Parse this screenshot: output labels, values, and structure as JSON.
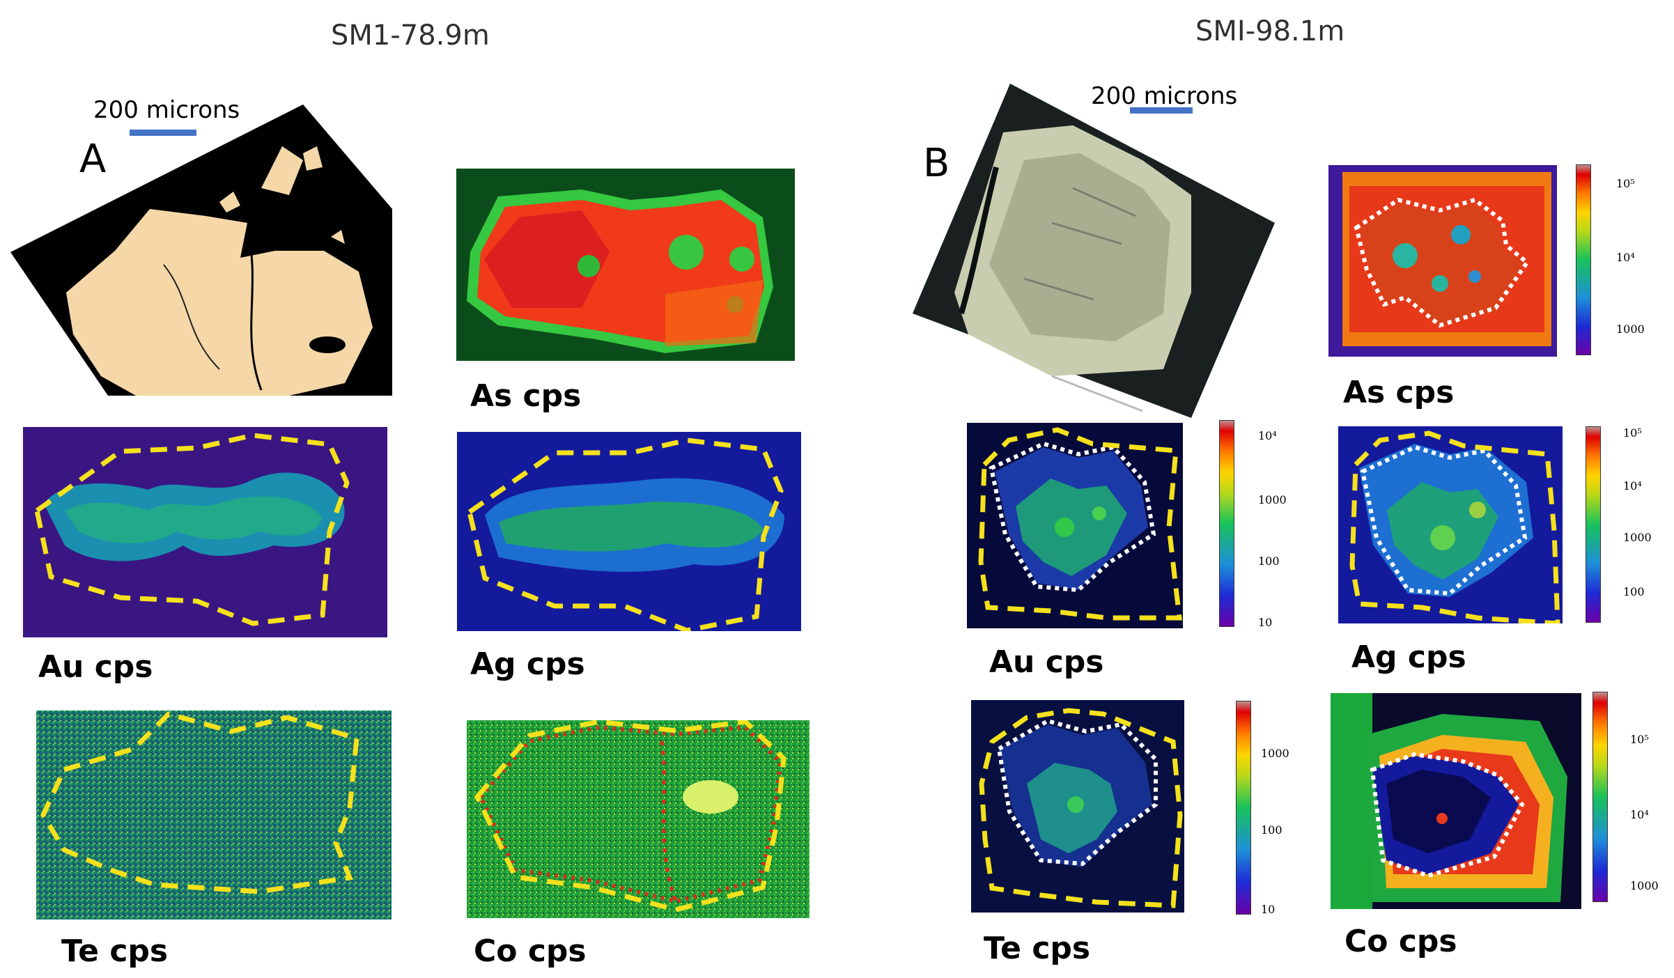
{
  "panel_a": {
    "title": "SM1-78.9m",
    "letter": "A",
    "scale_label": "200 microns",
    "labels": {
      "as": "As cps",
      "au": "Au cps",
      "ag": "Ag cps",
      "te": "Te cps",
      "co": "Co cps"
    }
  },
  "panel_b": {
    "title": "SMI-98.1m",
    "letter": "B",
    "scale_label": "200 microns",
    "labels": {
      "as": "As cps",
      "au": "Au cps",
      "ag": "Ag cps",
      "te": "Te cps",
      "co": "Co cps"
    },
    "colorbars": {
      "as": [
        "10⁵",
        "10⁴",
        "1000"
      ],
      "au": [
        "10⁴",
        "1000",
        "100",
        "10"
      ],
      "ag": [
        "10⁵",
        "10⁴",
        "1000",
        "100"
      ],
      "te": [
        "1000",
        "100",
        "10"
      ],
      "co": [
        "10⁵",
        "10⁴",
        "1000"
      ]
    }
  },
  "colors": {
    "grain": "#f5d7a8",
    "outline_yellow": "#f5e11c",
    "outline_white": "#ffffff",
    "scale_bar": "#4472c4"
  }
}
